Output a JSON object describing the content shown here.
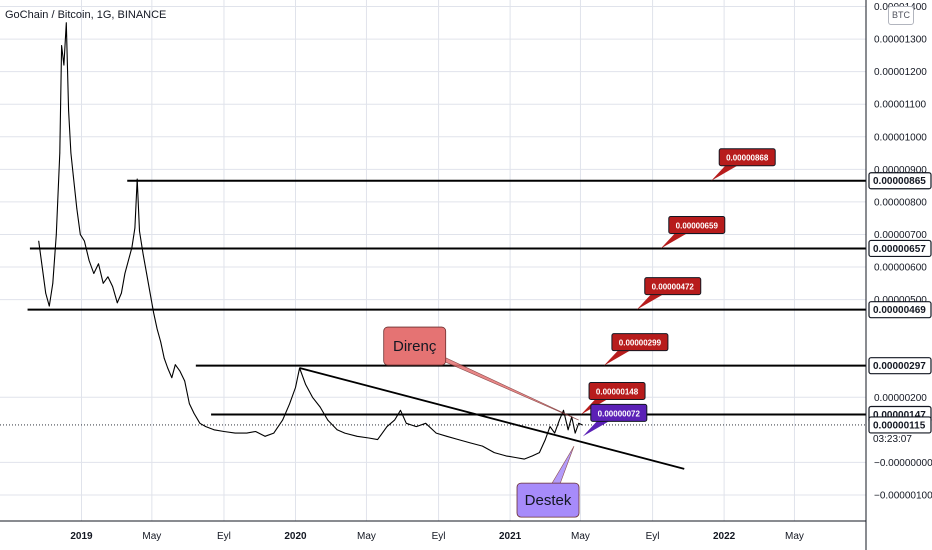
{
  "header": {
    "title": "GoChain / Bitcoin, 1G, BINANCE",
    "currency": "BTC"
  },
  "chart_data": {
    "type": "line",
    "colors": {
      "price": "#000000",
      "grid": "#e0e3eb",
      "callout_red": "#b71c1c",
      "callout_purple": "#5b21b6",
      "direnc_fill": "#e57373",
      "destek_fill": "#a78bfa"
    },
    "xlim": [
      "2018-08-15",
      "2022-08-31"
    ],
    "ylim": [
      -1.8e-06,
      1.42e-05
    ],
    "x_ticks": [
      {
        "label": "2019",
        "date": "2019-01-01",
        "bold": true
      },
      {
        "label": "May",
        "date": "2019-05-01",
        "bold": false
      },
      {
        "label": "Eyl",
        "date": "2019-09-01",
        "bold": false
      },
      {
        "label": "2020",
        "date": "2020-01-01",
        "bold": true
      },
      {
        "label": "May",
        "date": "2020-05-01",
        "bold": false
      },
      {
        "label": "Eyl",
        "date": "2020-09-01",
        "bold": false
      },
      {
        "label": "2021",
        "date": "2021-01-01",
        "bold": true
      },
      {
        "label": "May",
        "date": "2021-05-01",
        "bold": false
      },
      {
        "label": "Eyl",
        "date": "2021-09-01",
        "bold": false
      },
      {
        "label": "2022",
        "date": "2022-01-01",
        "bold": true
      },
      {
        "label": "May",
        "date": "2022-05-01",
        "bold": false
      }
    ],
    "y_ticks": [
      {
        "label": "0.00001400",
        "value": 1.4e-05
      },
      {
        "label": "0.00001300",
        "value": 1.3e-05
      },
      {
        "label": "0.00001200",
        "value": 1.2e-05
      },
      {
        "label": "0.00001100",
        "value": 1.1e-05
      },
      {
        "label": "0.00001000",
        "value": 1e-05
      },
      {
        "label": "0.00000900",
        "value": 9e-06
      },
      {
        "label": "0.00000800",
        "value": 8e-06
      },
      {
        "label": "0.00000700",
        "value": 7e-06
      },
      {
        "label": "0.00000600",
        "value": 6e-06
      },
      {
        "label": "0.00000500",
        "value": 5e-06
      },
      {
        "label": "0.00000200",
        "value": 2e-06
      },
      {
        "label": "−0.00000000",
        "value": 0
      },
      {
        "label": "−0.00000100",
        "value": -1e-06
      }
    ],
    "series": [
      {
        "points": [
          [
            "2018-10-20",
            6.8e-06
          ],
          [
            "2018-10-26",
            6e-06
          ],
          [
            "2018-11-01",
            5.2e-06
          ],
          [
            "2018-11-07",
            4.8e-06
          ],
          [
            "2018-11-13",
            5.5e-06
          ],
          [
            "2018-11-19",
            7e-06
          ],
          [
            "2018-11-25",
            9.5e-06
          ],
          [
            "2018-11-28",
            1.28e-05
          ],
          [
            "2018-12-02",
            1.22e-05
          ],
          [
            "2018-12-06",
            1.35e-05
          ],
          [
            "2018-12-10",
            1.08e-05
          ],
          [
            "2018-12-14",
            9.5e-06
          ],
          [
            "2018-12-18",
            8.8e-06
          ],
          [
            "2018-12-24",
            7.8e-06
          ],
          [
            "2018-12-30",
            7e-06
          ],
          [
            "2019-01-06",
            6.8e-06
          ],
          [
            "2019-01-14",
            6.2e-06
          ],
          [
            "2019-01-22",
            5.8e-06
          ],
          [
            "2019-01-30",
            6.1e-06
          ],
          [
            "2019-02-07",
            5.5e-06
          ],
          [
            "2019-02-15",
            5.7e-06
          ],
          [
            "2019-02-23",
            5.4e-06
          ],
          [
            "2019-03-03",
            4.9e-06
          ],
          [
            "2019-03-10",
            5.2e-06
          ],
          [
            "2019-03-16",
            5.8e-06
          ],
          [
            "2019-03-22",
            6.2e-06
          ],
          [
            "2019-03-28",
            6.6e-06
          ],
          [
            "2019-04-02",
            7.2e-06
          ],
          [
            "2019-04-06",
            8.7e-06
          ],
          [
            "2019-04-10",
            7.1e-06
          ],
          [
            "2019-04-16",
            6.4e-06
          ],
          [
            "2019-04-22",
            5.8e-06
          ],
          [
            "2019-04-28",
            5.2e-06
          ],
          [
            "2019-05-04",
            4.6e-06
          ],
          [
            "2019-05-10",
            4.1e-06
          ],
          [
            "2019-05-16",
            3.7e-06
          ],
          [
            "2019-05-22",
            3.2e-06
          ],
          [
            "2019-05-28",
            2.9e-06
          ],
          [
            "2019-06-04",
            2.6e-06
          ],
          [
            "2019-06-10",
            3e-06
          ],
          [
            "2019-06-18",
            2.8e-06
          ],
          [
            "2019-06-26",
            2.5e-06
          ],
          [
            "2019-07-04",
            1.8e-06
          ],
          [
            "2019-07-12",
            1.5e-06
          ],
          [
            "2019-07-22",
            1.2e-06
          ],
          [
            "2019-08-01",
            1.1e-06
          ],
          [
            "2019-08-15",
            1e-06
          ],
          [
            "2019-09-01",
            9.5e-07
          ],
          [
            "2019-09-20",
            9e-07
          ],
          [
            "2019-10-10",
            9e-07
          ],
          [
            "2019-10-25",
            9.5e-07
          ],
          [
            "2019-11-10",
            8e-07
          ],
          [
            "2019-11-25",
            9e-07
          ],
          [
            "2019-12-10",
            1.3e-06
          ],
          [
            "2019-12-22",
            1.8e-06
          ],
          [
            "2020-01-01",
            2.3e-06
          ],
          [
            "2020-01-08",
            2.9e-06
          ],
          [
            "2020-01-18",
            2.4e-06
          ],
          [
            "2020-01-30",
            2e-06
          ],
          [
            "2020-02-12",
            1.7e-06
          ],
          [
            "2020-02-25",
            1.3e-06
          ],
          [
            "2020-03-12",
            1e-06
          ],
          [
            "2020-03-25",
            9e-07
          ],
          [
            "2020-04-15",
            8e-07
          ],
          [
            "2020-05-05",
            7.5e-07
          ],
          [
            "2020-05-20",
            7e-07
          ],
          [
            "2020-06-05",
            1.1e-06
          ],
          [
            "2020-06-18",
            1.3e-06
          ],
          [
            "2020-06-28",
            1.6e-06
          ],
          [
            "2020-07-08",
            1.2e-06
          ],
          [
            "2020-07-25",
            1.1e-06
          ],
          [
            "2020-08-10",
            1.2e-06
          ],
          [
            "2020-08-28",
            9e-07
          ],
          [
            "2020-09-15",
            8e-07
          ],
          [
            "2020-10-05",
            7e-07
          ],
          [
            "2020-10-25",
            6e-07
          ],
          [
            "2020-11-15",
            5e-07
          ],
          [
            "2020-12-05",
            3e-07
          ],
          [
            "2020-12-25",
            2e-07
          ],
          [
            "2021-01-10",
            1.5e-07
          ],
          [
            "2021-01-25",
            1e-07
          ],
          [
            "2021-02-08",
            2e-07
          ],
          [
            "2021-02-20",
            3e-07
          ],
          [
            "2021-03-02",
            7e-07
          ],
          [
            "2021-03-10",
            1.1e-06
          ],
          [
            "2021-03-18",
            9e-07
          ],
          [
            "2021-03-26",
            1.3e-06
          ],
          [
            "2021-04-02",
            1.6e-06
          ],
          [
            "2021-04-10",
            1e-06
          ],
          [
            "2021-04-16",
            1.4e-06
          ],
          [
            "2021-04-22",
            9e-07
          ],
          [
            "2021-04-28",
            1.2e-06
          ],
          [
            "2021-05-04",
            1.15e-06
          ]
        ]
      }
    ],
    "horizontal_levels": [
      {
        "value": 8.65e-06,
        "label": "0.00000865",
        "start": "2019-03-20"
      },
      {
        "value": 6.57e-06,
        "label": "0.00000657",
        "start": "2018-10-05"
      },
      {
        "value": 4.69e-06,
        "label": "0.00000469",
        "start": "2018-10-01"
      },
      {
        "value": 2.97e-06,
        "label": "0.00000297",
        "start": "2019-07-15"
      },
      {
        "value": 1.47e-06,
        "label": "0.00000147",
        "start": "2019-08-10"
      }
    ],
    "current_price": {
      "value": 1.15e-06,
      "label": "0.00000115",
      "countdown": "03:23:07"
    },
    "trendline": {
      "from": [
        "2020-01-08",
        2.9e-06
      ],
      "to": [
        "2021-10-25",
        -2e-07
      ]
    },
    "callouts": [
      {
        "label": "0.00000868",
        "color": "#b71c1c",
        "anchor": [
          "2021-12-10",
          8.65e-06
        ]
      },
      {
        "label": "0.00000659",
        "color": "#b71c1c",
        "anchor": [
          "2021-09-15",
          6.57e-06
        ]
      },
      {
        "label": "0.00000472",
        "color": "#b71c1c",
        "anchor": [
          "2021-08-05",
          4.69e-06
        ]
      },
      {
        "label": "0.00000299",
        "color": "#b71c1c",
        "anchor": [
          "2021-06-10",
          2.97e-06
        ]
      },
      {
        "label": "0.00000148",
        "color": "#b71c1c",
        "anchor": [
          "2021-05-02",
          1.47e-06
        ]
      },
      {
        "label": "0.00000072",
        "color": "#5b21b6",
        "anchor": [
          "2021-05-05",
          8e-07
        ]
      }
    ],
    "notes": [
      {
        "text": "Direnç",
        "fill": "#e57373",
        "anchor": [
          "2021-04-28",
          1.3e-06
        ]
      },
      {
        "text": "Destek",
        "fill": "#a78bfa",
        "anchor": [
          "2021-04-20",
          5e-07
        ]
      }
    ]
  }
}
